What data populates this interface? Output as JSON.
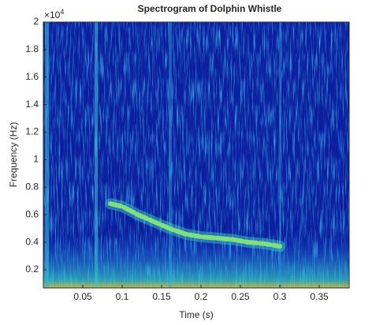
{
  "chart_data": {
    "type": "spectrogram",
    "title": "Spectrogram of Dolphin Whistle",
    "x_label": "Time (s)",
    "y_label": "Frequency (Hz)",
    "y_multiplier": {
      "base": "×10",
      "power": "4"
    },
    "xlim": [
      0,
      0.388
    ],
    "ylim": [
      0.068,
      2
    ],
    "xticks": [
      0.05,
      0.1,
      0.15,
      0.2,
      0.25,
      0.3,
      0.35
    ],
    "yticks": [
      0.2,
      0.4,
      0.6,
      0.8,
      1,
      1.2,
      1.4,
      1.6,
      1.8,
      2
    ],
    "x": [
      0.085,
      0.1,
      0.12,
      0.14,
      0.16,
      0.18,
      0.2,
      0.22,
      0.24,
      0.26,
      0.28,
      0.3
    ],
    "series": [
      {
        "color": "#7fe07a",
        "values": [
          0.68,
          0.66,
          0.6,
          0.55,
          0.5,
          0.46,
          0.44,
          0.43,
          0.42,
          0.4,
          0.39,
          0.37
        ]
      }
    ]
  }
}
